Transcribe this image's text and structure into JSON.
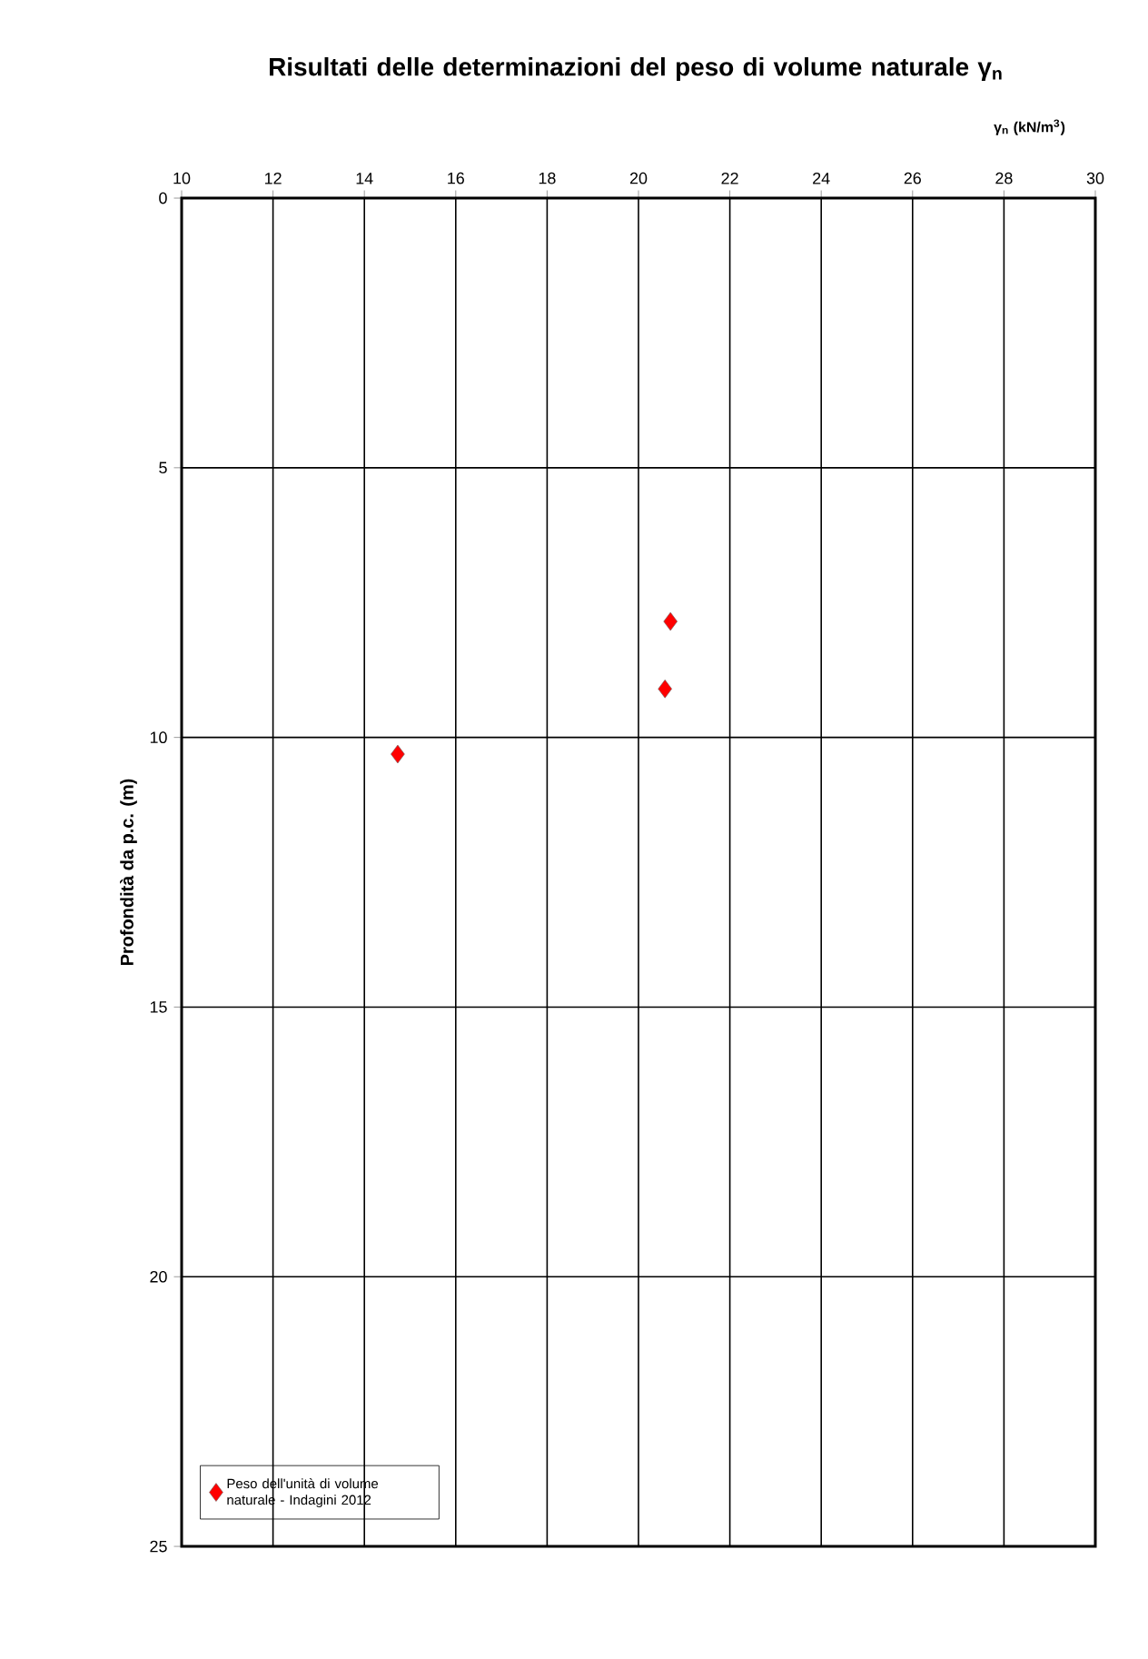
{
  "chart_data": {
    "type": "scatter",
    "title": "Risultati delle determinazioni del peso di volume naturale γ$_{n}$",
    "xlabel": "γ$_{n}$  (kN/m$^{3}$)",
    "ylabel": "Profondità da p.c. (m)",
    "xlim": [
      10,
      30
    ],
    "xticks": [
      10,
      12,
      14,
      16,
      18,
      20,
      22,
      24,
      26,
      28,
      30
    ],
    "ylim": [
      25,
      0
    ],
    "yticks": [
      0,
      5,
      10,
      15,
      20,
      25
    ],
    "grid": true,
    "legend": "bottom left",
    "marker": "diamond",
    "series": [
      {
        "name": "Peso dell'unità di volume naturale - Indagini 2012",
        "color": "#ff0000",
        "x": [
          20.7,
          20.58,
          14.73
        ],
        "values": [
          7.85,
          9.1,
          10.31
        ]
      }
    ]
  }
}
